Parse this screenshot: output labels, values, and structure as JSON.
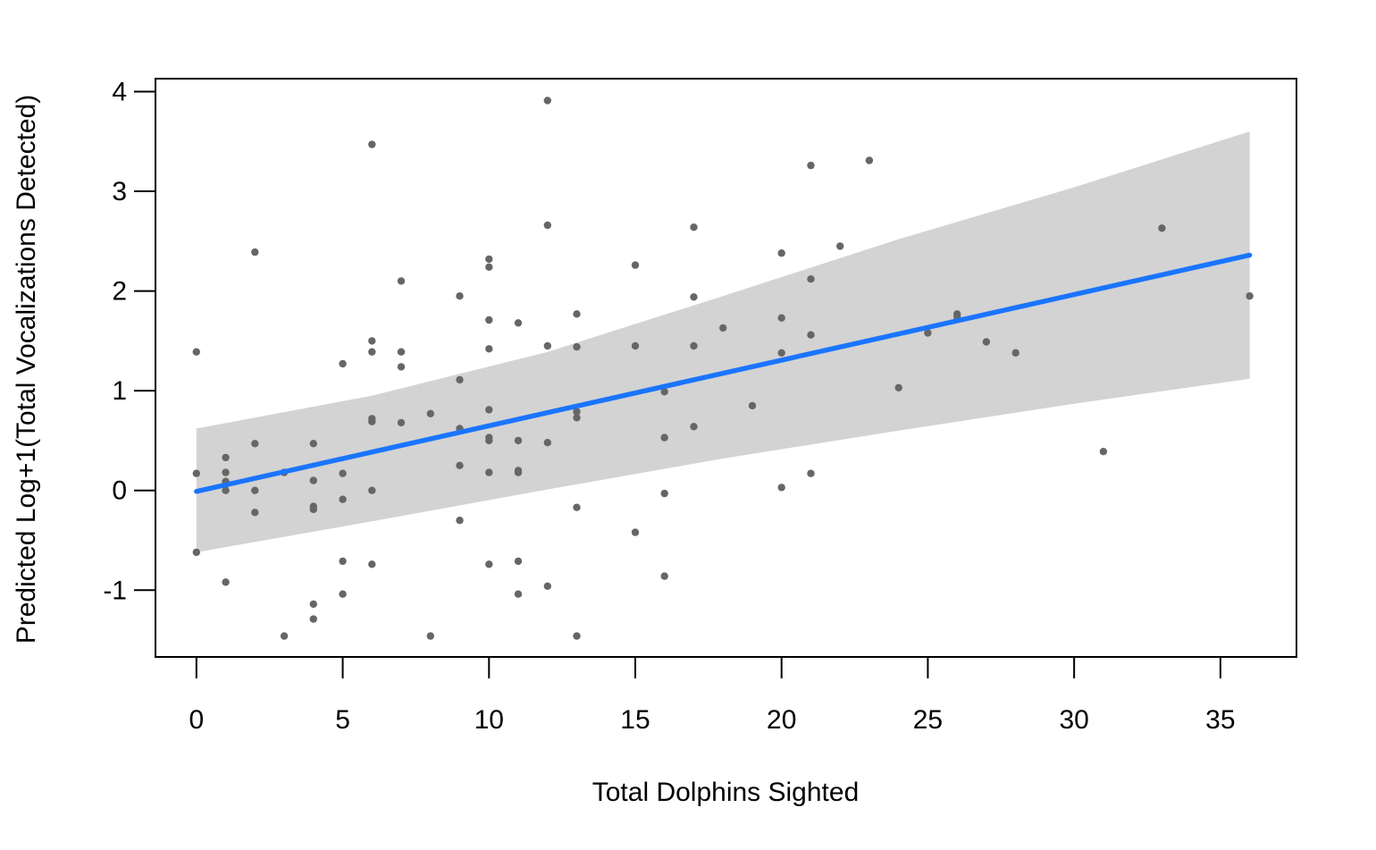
{
  "chart_data": {
    "type": "scatter",
    "title": "",
    "xlabel": "Total Dolphins Sighted",
    "ylabel": "Predicted Log+1(Total Vocalizations Detected)",
    "xlim": [
      -1.4,
      37.6
    ],
    "ylim": [
      -1.67,
      4.13
    ],
    "xticks": [
      0,
      5,
      10,
      15,
      20,
      25,
      30,
      35
    ],
    "yticks": [
      -1,
      0,
      1,
      2,
      3,
      4
    ],
    "grid": false,
    "legend": "none",
    "colors": {
      "points": "#666666",
      "fit_line": "#1a75ff",
      "confidence_band": "#d3d3d3",
      "frame": "#000000"
    },
    "series": [
      {
        "type": "scatter",
        "points": [
          {
            "x": 0,
            "y": 1.39
          },
          {
            "x": 0,
            "y": 0.17
          },
          {
            "x": 0,
            "y": -0.62
          },
          {
            "x": 1,
            "y": 0.33
          },
          {
            "x": 1,
            "y": 0.18
          },
          {
            "x": 1,
            "y": 0.09
          },
          {
            "x": 1,
            "y": 0.06
          },
          {
            "x": 1,
            "y": 0.0
          },
          {
            "x": 1,
            "y": -0.92
          },
          {
            "x": 2,
            "y": 2.39
          },
          {
            "x": 2,
            "y": 0.47
          },
          {
            "x": 2,
            "y": 0.0
          },
          {
            "x": 2,
            "y": -0.22
          },
          {
            "x": 3,
            "y": 0.18
          },
          {
            "x": 3,
            "y": -1.46
          },
          {
            "x": 4,
            "y": 0.47
          },
          {
            "x": 4,
            "y": 0.1
          },
          {
            "x": 4,
            "y": -0.16
          },
          {
            "x": 4,
            "y": -0.19
          },
          {
            "x": 4,
            "y": -1.14
          },
          {
            "x": 4,
            "y": -1.29
          },
          {
            "x": 5,
            "y": 1.27
          },
          {
            "x": 5,
            "y": 0.17
          },
          {
            "x": 5,
            "y": -0.09
          },
          {
            "x": 5,
            "y": -0.71
          },
          {
            "x": 5,
            "y": -1.04
          },
          {
            "x": 6,
            "y": 3.47
          },
          {
            "x": 6,
            "y": 1.5
          },
          {
            "x": 6,
            "y": 1.39
          },
          {
            "x": 6,
            "y": 0.72
          },
          {
            "x": 6,
            "y": 0.69
          },
          {
            "x": 6,
            "y": 0.0
          },
          {
            "x": 6,
            "y": -0.74
          },
          {
            "x": 7,
            "y": 2.1
          },
          {
            "x": 7,
            "y": 1.39
          },
          {
            "x": 7,
            "y": 1.24
          },
          {
            "x": 7,
            "y": 0.68
          },
          {
            "x": 8,
            "y": 0.77
          },
          {
            "x": 8,
            "y": -1.46
          },
          {
            "x": 9,
            "y": 1.95
          },
          {
            "x": 9,
            "y": 1.11
          },
          {
            "x": 9,
            "y": 0.62
          },
          {
            "x": 9,
            "y": 0.25
          },
          {
            "x": 9,
            "y": -0.3
          },
          {
            "x": 10,
            "y": 2.32
          },
          {
            "x": 10,
            "y": 2.24
          },
          {
            "x": 10,
            "y": 1.71
          },
          {
            "x": 10,
            "y": 1.42
          },
          {
            "x": 10,
            "y": 0.81
          },
          {
            "x": 10,
            "y": 0.53
          },
          {
            "x": 10,
            "y": 0.5
          },
          {
            "x": 10,
            "y": 0.18
          },
          {
            "x": 10,
            "y": -0.74
          },
          {
            "x": 11,
            "y": 1.68
          },
          {
            "x": 11,
            "y": 0.5
          },
          {
            "x": 11,
            "y": 0.2
          },
          {
            "x": 11,
            "y": 0.18
          },
          {
            "x": 11,
            "y": -0.71
          },
          {
            "x": 11,
            "y": -1.04
          },
          {
            "x": 12,
            "y": 3.91
          },
          {
            "x": 12,
            "y": 2.66
          },
          {
            "x": 12,
            "y": 1.45
          },
          {
            "x": 12,
            "y": 0.48
          },
          {
            "x": 12,
            "y": -0.96
          },
          {
            "x": 13,
            "y": 1.77
          },
          {
            "x": 13,
            "y": 1.44
          },
          {
            "x": 13,
            "y": 0.79
          },
          {
            "x": 13,
            "y": 0.73
          },
          {
            "x": 13,
            "y": -0.17
          },
          {
            "x": 13,
            "y": -1.46
          },
          {
            "x": 15,
            "y": 2.26
          },
          {
            "x": 15,
            "y": 1.45
          },
          {
            "x": 15,
            "y": -0.42
          },
          {
            "x": 16,
            "y": 0.99
          },
          {
            "x": 16,
            "y": 0.53
          },
          {
            "x": 16,
            "y": -0.03
          },
          {
            "x": 16,
            "y": -0.86
          },
          {
            "x": 17,
            "y": 2.64
          },
          {
            "x": 17,
            "y": 1.94
          },
          {
            "x": 17,
            "y": 1.45
          },
          {
            "x": 17,
            "y": 0.64
          },
          {
            "x": 18,
            "y": 1.63
          },
          {
            "x": 19,
            "y": 0.85
          },
          {
            "x": 20,
            "y": 2.38
          },
          {
            "x": 20,
            "y": 1.73
          },
          {
            "x": 20,
            "y": 1.38
          },
          {
            "x": 20,
            "y": 0.03
          },
          {
            "x": 21,
            "y": 3.26
          },
          {
            "x": 21,
            "y": 2.12
          },
          {
            "x": 21,
            "y": 1.56
          },
          {
            "x": 21,
            "y": 0.17
          },
          {
            "x": 22,
            "y": 2.45
          },
          {
            "x": 23,
            "y": 3.31
          },
          {
            "x": 24,
            "y": 1.03
          },
          {
            "x": 25,
            "y": 1.58
          },
          {
            "x": 26,
            "y": 1.77
          },
          {
            "x": 26,
            "y": 1.74
          },
          {
            "x": 27,
            "y": 1.49
          },
          {
            "x": 28,
            "y": 1.38
          },
          {
            "x": 31,
            "y": 0.39
          },
          {
            "x": 33,
            "y": 2.63
          },
          {
            "x": 36,
            "y": 1.95
          }
        ]
      },
      {
        "type": "line",
        "points": [
          {
            "x": 0,
            "y": -0.01
          },
          {
            "x": 36,
            "y": 2.36
          }
        ]
      },
      {
        "type": "area",
        "x": [
          0,
          6,
          12,
          18,
          24,
          30,
          36
        ],
        "upper": [
          0.62,
          0.95,
          1.39,
          1.95,
          2.52,
          3.04,
          3.6
        ],
        "lower": [
          -0.62,
          -0.31,
          0.01,
          0.32,
          0.6,
          0.87,
          1.12
        ]
      }
    ]
  }
}
